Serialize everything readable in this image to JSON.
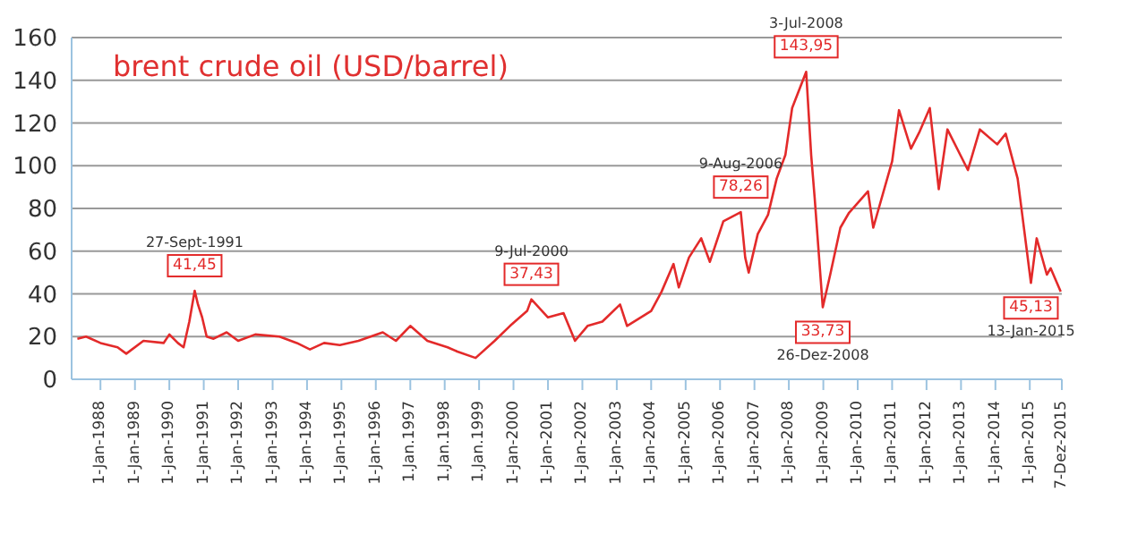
{
  "chart_data": {
    "type": "line",
    "title": "brent crude oil (USD/barrel)",
    "x": [
      "1987-05-01",
      "1987-08-01",
      "1988-01-01",
      "1988-07-01",
      "1988-10-01",
      "1989-04-01",
      "1989-11-01",
      "1990-01-01",
      "1990-04-01",
      "1990-06-01",
      "1990-08-01",
      "1990-09-27",
      "1990-11-01",
      "1990-12-15",
      "1991-02-01",
      "1991-04-15",
      "1991-09-01",
      "1992-01-01",
      "1992-07-01",
      "1993-03-15",
      "1993-09-15",
      "1994-02-01",
      "1994-07-01",
      "1994-12-15",
      "1995-07-01",
      "1996-03-15",
      "1996-08-01",
      "1997-01-01",
      "1997-07-01",
      "1998-02-01",
      "1998-05-15",
      "1998-11-25",
      "1999-06-15",
      "1999-11-25",
      "2000-05-25",
      "2000-07-09",
      "2001-01-01",
      "2001-06-15",
      "2001-10-15",
      "2002-02-25",
      "2002-08-01",
      "2003-02-05",
      "2003-04-20",
      "2004-01-01",
      "2004-04-20",
      "2004-08-25",
      "2004-10-20",
      "2005-02-05",
      "2005-06-15",
      "2005-09-15",
      "2006-02-05",
      "2006-08-09",
      "2006-09-25",
      "2006-11-01",
      "2007-02-05",
      "2007-05-25",
      "2007-08-25",
      "2007-11-25",
      "2008-02-05",
      "2008-07-03",
      "2008-08-25",
      "2008-10-01",
      "2008-12-26",
      "2009-03-15",
      "2009-07-01",
      "2009-10-01",
      "2010-04-20",
      "2010-06-15",
      "2011-01-01",
      "2011-03-15",
      "2011-07-20",
      "2011-10-20",
      "2012-02-05",
      "2012-05-10",
      "2012-08-10",
      "2013-03-15",
      "2013-07-20",
      "2014-01-20",
      "2014-04-20",
      "2014-08-25",
      "2015-01-13",
      "2015-03-15",
      "2015-07-01",
      "2015-08-10",
      "2015-11-25"
    ],
    "series": [
      {
        "color": "#e32a2a",
        "values": [
          19,
          20,
          17,
          15,
          12,
          18,
          17,
          21,
          17,
          15,
          27,
          41.45,
          35,
          29,
          20,
          19,
          22,
          18,
          21,
          20,
          17,
          14,
          17,
          16,
          18,
          22,
          18,
          25,
          18,
          15,
          13,
          10,
          18,
          25,
          32,
          37.43,
          29,
          31,
          18,
          25,
          27,
          35,
          25,
          32,
          41,
          54,
          43,
          57,
          66,
          55,
          74,
          78.26,
          57,
          50,
          68,
          77,
          94,
          105,
          127,
          143.95,
          105,
          85,
          33.73,
          49,
          71,
          78,
          88,
          71,
          102,
          126,
          108,
          116,
          127,
          89,
          117,
          98,
          117,
          110,
          115,
          94,
          45.13,
          66,
          49,
          52,
          41
        ]
      }
    ],
    "xlim": [
      "1987-03-01",
      "2015-12-07"
    ],
    "xticks": [
      {
        "value": "1988-01-01",
        "label": "1-Jan-1988"
      },
      {
        "value": "1989-01-01",
        "label": "1-Jan-1989"
      },
      {
        "value": "1990-01-01",
        "label": "1-Jan-1990"
      },
      {
        "value": "1991-01-01",
        "label": "1-Jan-1991"
      },
      {
        "value": "1992-01-01",
        "label": "1-Jan-1992"
      },
      {
        "value": "1993-01-01",
        "label": "1-Jan-1993"
      },
      {
        "value": "1994-01-01",
        "label": "1-Jan-1994"
      },
      {
        "value": "1995-01-01",
        "label": "1-Jan-1995"
      },
      {
        "value": "1996-01-01",
        "label": "1-Jan-1996"
      },
      {
        "value": "1997-01-01",
        "label": "1.Jan.1997"
      },
      {
        "value": "1998-01-01",
        "label": "1.Jan.1998"
      },
      {
        "value": "1999-01-01",
        "label": "1.Jan.1999"
      },
      {
        "value": "2000-01-01",
        "label": "1-Jan-2000"
      },
      {
        "value": "2001-01-01",
        "label": "1-Jan-2001"
      },
      {
        "value": "2002-01-01",
        "label": "1-Jan-2002"
      },
      {
        "value": "2003-01-01",
        "label": "1-Jan-2003"
      },
      {
        "value": "2004-01-01",
        "label": "1-Jan-2004"
      },
      {
        "value": "2005-01-01",
        "label": "1-Jan-2005"
      },
      {
        "value": "2006-01-01",
        "label": "1-Jan-2006"
      },
      {
        "value": "2007-01-01",
        "label": "1-Jan-2007"
      },
      {
        "value": "2008-01-01",
        "label": "1-Jan-2008"
      },
      {
        "value": "2009-01-01",
        "label": "1-Jan-2009"
      },
      {
        "value": "2010-01-01",
        "label": "1-Jan-2010"
      },
      {
        "value": "2011-01-01",
        "label": "1-Jan-2011"
      },
      {
        "value": "2012-01-01",
        "label": "1-Jan-2012"
      },
      {
        "value": "2013-01-01",
        "label": "1-Jan-2013"
      },
      {
        "value": "2014-01-01",
        "label": "1-Jan-2014"
      },
      {
        "value": "2015-01-01",
        "label": "1-Jan-2015"
      },
      {
        "value": "2015-12-07",
        "label": "7-Dez-2015"
      }
    ],
    "ylim": [
      0,
      160
    ],
    "yticks": [
      0,
      20,
      40,
      60,
      80,
      100,
      120,
      140,
      160
    ],
    "grid": "y",
    "marker": "none",
    "line_style": "solid",
    "annotations": [
      {
        "text": "27-Sept-1991",
        "x": "1990-09-27",
        "y": 41.45
      },
      {
        "text": "41,45",
        "x": "1990-09-27",
        "y": 41.45
      },
      {
        "text": "9-Jul-2000",
        "x": "2000-07-09",
        "y": 37.43
      },
      {
        "text": "37,43",
        "x": "2000-07-09",
        "y": 37.43
      },
      {
        "text": "9-Aug-2006",
        "x": "2006-08-09",
        "y": 78.26
      },
      {
        "text": "78,26",
        "x": "2006-08-09",
        "y": 78.26
      },
      {
        "text": "3-Jul-2008",
        "x": "2008-07-03",
        "y": 143.95
      },
      {
        "text": "143,95",
        "x": "2008-07-03",
        "y": 143.95
      },
      {
        "text": "26-Dez-2008",
        "x": "2008-12-26",
        "y": 33.73
      },
      {
        "text": "33,73",
        "x": "2008-12-26",
        "y": 33.73
      },
      {
        "text": "13-Jan-2015",
        "x": "2015-01-13",
        "y": 45.13
      },
      {
        "text": "45,13",
        "x": "2015-01-13",
        "y": 45.13
      }
    ]
  }
}
